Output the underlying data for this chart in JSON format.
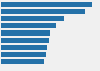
{
  "values": [
    6.3,
    5.8,
    4.4,
    3.8,
    3.4,
    3.3,
    3.2,
    3.1,
    3.0
  ],
  "bar_color": "#2471a8",
  "background_color": "#f0f0f0",
  "plot_bg_color": "#f0f0f0",
  "xlim": [
    0,
    6.8
  ],
  "bar_height": 0.72
}
